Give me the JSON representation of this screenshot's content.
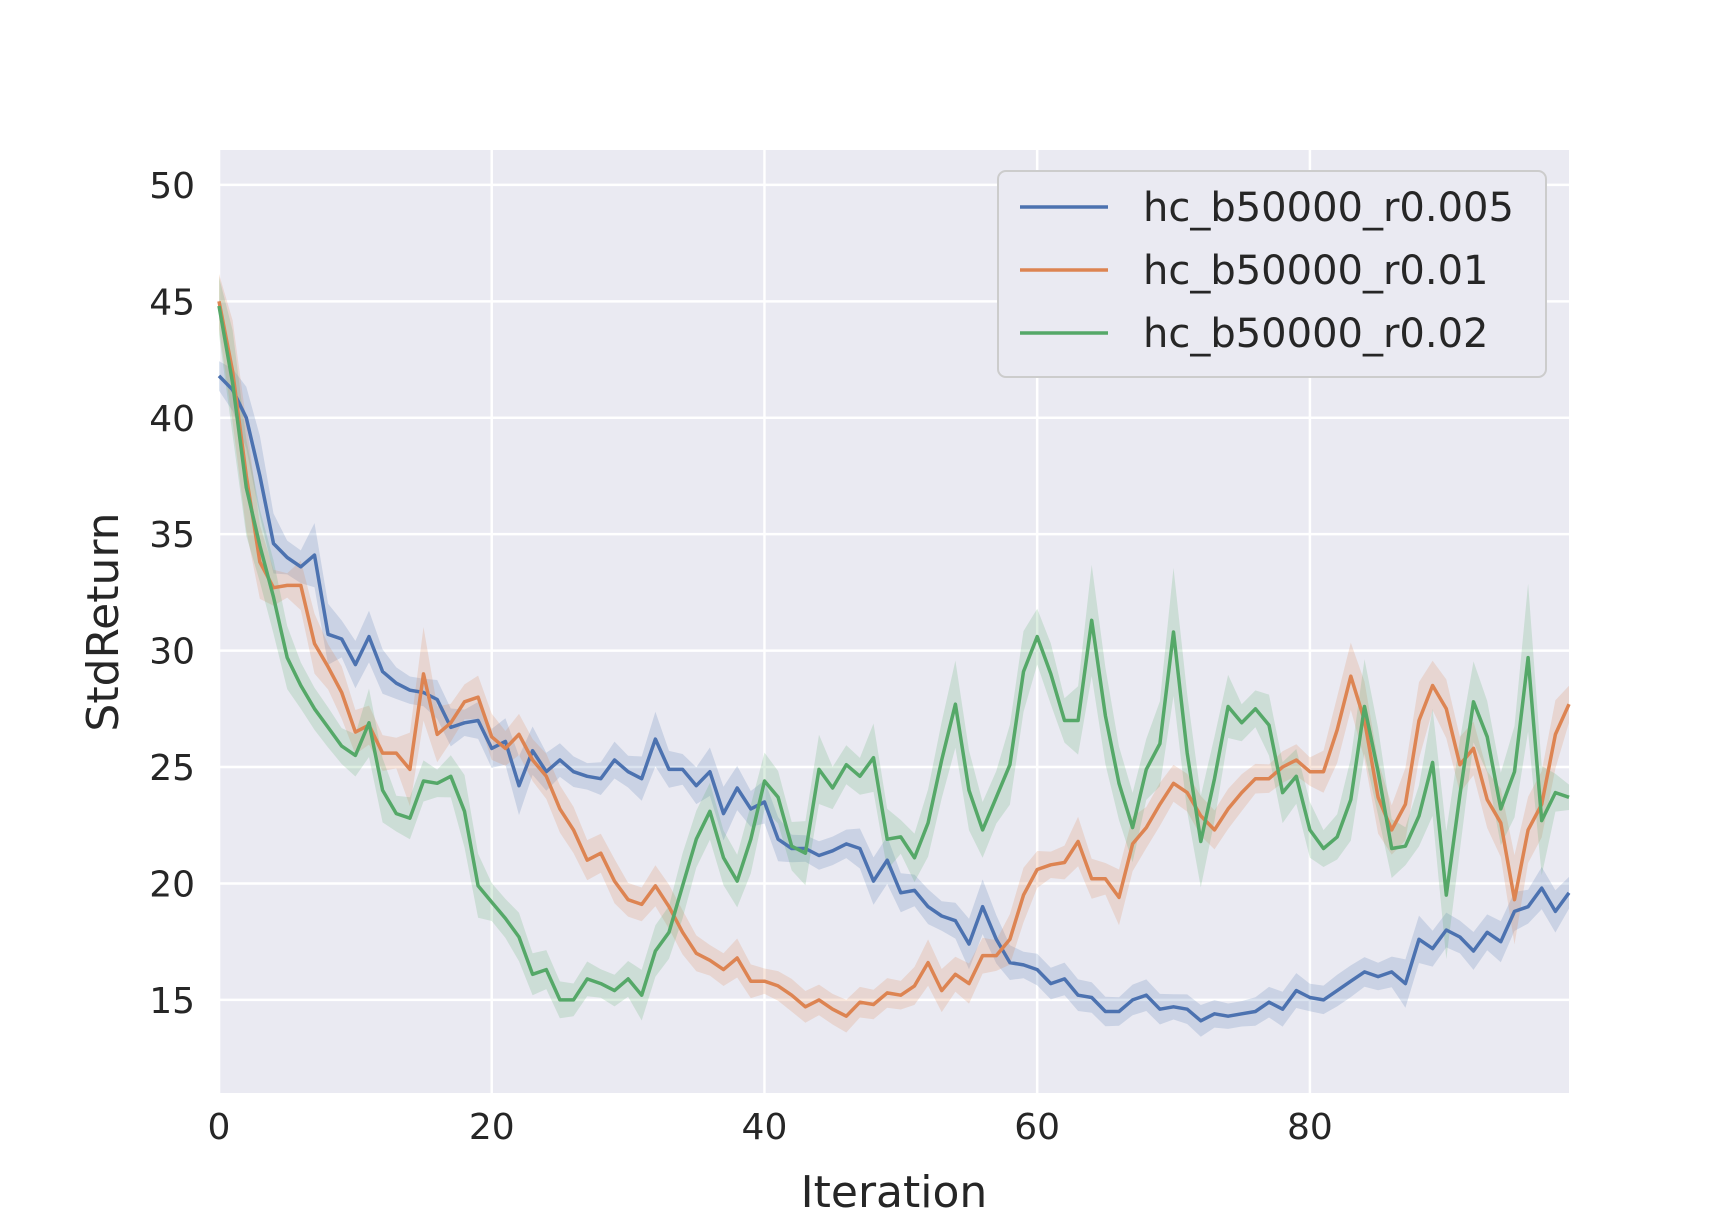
{
  "chart_data": {
    "type": "line",
    "xlabel": "Iteration",
    "ylabel": "StdReturn",
    "xlim": [
      0,
      99
    ],
    "ylim": [
      11,
      51.5
    ],
    "xticks": [
      0,
      20,
      40,
      60,
      80
    ],
    "yticks": [
      15,
      20,
      25,
      30,
      35,
      40,
      45,
      50
    ],
    "grid": true,
    "legend_position": "top-right",
    "series": [
      {
        "name": "hc_b50000_r0.005",
        "color": "#4c72b0",
        "values": [
          41.8,
          41.2,
          40.0,
          37.5,
          34.6,
          34.0,
          33.6,
          34.1,
          30.7,
          30.5,
          29.4,
          30.6,
          29.1,
          28.6,
          28.3,
          28.2,
          27.9,
          26.7,
          26.9,
          27.0,
          25.8,
          26.1,
          24.2,
          25.7,
          24.8,
          25.3,
          24.8,
          24.6,
          24.5,
          25.3,
          24.8,
          24.5,
          26.2,
          24.9,
          24.9,
          24.2,
          24.8,
          23.0,
          24.1,
          23.2,
          23.5,
          21.9,
          21.5,
          21.5,
          21.2,
          21.4,
          21.7,
          21.5,
          20.1,
          21.0,
          19.6,
          19.7,
          19.0,
          18.6,
          18.4,
          17.4,
          19.0,
          17.6,
          16.6,
          16.5,
          16.3,
          15.7,
          15.9,
          15.2,
          15.1,
          14.5,
          14.5,
          15.0,
          15.2,
          14.6,
          14.7,
          14.6,
          14.1,
          14.4,
          14.3,
          14.4,
          14.5,
          14.9,
          14.6,
          15.4,
          15.1,
          15.0,
          15.4,
          15.8,
          16.2,
          16.0,
          16.2,
          15.7,
          17.6,
          17.2,
          18.0,
          17.7,
          17.1,
          17.9,
          17.5,
          18.8,
          19.0,
          19.8,
          18.8,
          19.6
        ]
      },
      {
        "name": "hc_b50000_r0.01",
        "color": "#dd8452",
        "values": [
          45.0,
          42.0,
          37.5,
          33.8,
          32.7,
          32.8,
          32.8,
          30.3,
          29.3,
          28.2,
          26.5,
          26.8,
          25.6,
          25.6,
          24.9,
          29.0,
          26.4,
          26.9,
          27.8,
          28.0,
          26.3,
          25.8,
          26.4,
          25.3,
          24.6,
          23.2,
          22.3,
          21.0,
          21.3,
          20.1,
          19.3,
          19.1,
          19.9,
          19.0,
          17.9,
          17.0,
          16.7,
          16.3,
          16.8,
          15.8,
          15.8,
          15.6,
          15.2,
          14.7,
          15.0,
          14.6,
          14.3,
          14.9,
          14.8,
          15.3,
          15.2,
          15.6,
          16.6,
          15.4,
          16.1,
          15.7,
          16.9,
          16.9,
          17.6,
          19.5,
          20.6,
          20.8,
          20.9,
          21.8,
          20.2,
          20.2,
          19.4,
          21.7,
          22.4,
          23.4,
          24.3,
          23.9,
          22.9,
          22.3,
          23.2,
          23.9,
          24.5,
          24.5,
          25.0,
          25.3,
          24.8,
          24.8,
          26.6,
          28.9,
          27.0,
          23.7,
          22.3,
          23.4,
          27.0,
          28.5,
          27.5,
          25.1,
          25.8,
          23.6,
          22.6,
          19.3,
          22.3,
          23.4,
          26.4,
          27.7
        ]
      },
      {
        "name": "hc_b50000_r0.02",
        "color": "#55a868",
        "values": [
          44.8,
          41.5,
          37.0,
          34.5,
          32.3,
          29.7,
          28.5,
          27.5,
          26.7,
          25.9,
          25.5,
          26.9,
          24.0,
          23.0,
          22.8,
          24.4,
          24.3,
          24.6,
          23.1,
          19.9,
          19.2,
          18.5,
          17.7,
          16.1,
          16.3,
          15.0,
          15.0,
          15.9,
          15.7,
          15.4,
          15.9,
          15.2,
          17.1,
          17.9,
          19.9,
          21.9,
          23.1,
          21.1,
          20.1,
          21.9,
          24.4,
          23.7,
          21.6,
          21.3,
          24.9,
          24.1,
          25.1,
          24.6,
          25.4,
          21.9,
          22.0,
          21.1,
          22.6,
          25.3,
          27.7,
          24.0,
          22.3,
          23.7,
          25.1,
          29.1,
          30.6,
          29.0,
          27.0,
          27.0,
          31.3,
          27.2,
          24.3,
          22.4,
          24.9,
          26.0,
          30.8,
          25.6,
          21.8,
          24.5,
          27.6,
          26.9,
          27.5,
          26.8,
          23.9,
          24.6,
          22.3,
          21.5,
          22.0,
          23.6,
          27.6,
          24.8,
          21.5,
          21.6,
          22.9,
          25.2,
          19.5,
          23.8,
          27.8,
          26.3,
          23.2,
          24.8,
          29.7,
          22.7,
          23.9,
          23.7
        ]
      }
    ]
  }
}
